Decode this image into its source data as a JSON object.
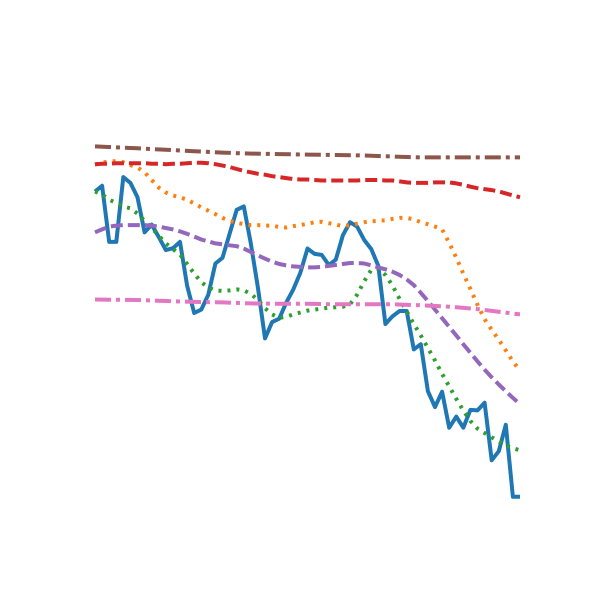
{
  "chart_data": {
    "type": "line",
    "title": "",
    "xlabel": "",
    "ylabel": "",
    "axes_visible": false,
    "grid": false,
    "legend": "none",
    "xlim": [
      0,
      60
    ],
    "ylim": [
      0,
      100
    ],
    "series": [
      {
        "color": "#1f77b4",
        "style": "solid",
        "x": [
          0,
          1,
          2,
          3,
          4,
          5,
          6,
          7,
          8,
          9,
          10,
          11,
          12,
          13,
          14,
          15,
          16,
          17,
          18,
          19,
          20,
          21,
          22,
          23,
          24,
          25,
          26,
          27,
          28,
          29,
          30,
          31,
          32,
          33,
          34,
          35,
          36,
          37,
          38,
          39,
          40,
          41,
          42,
          43,
          44,
          45,
          46,
          47,
          48,
          49,
          50,
          51,
          52,
          53,
          54,
          55,
          56,
          57,
          58,
          59,
          60
        ],
        "values": [
          72.6,
          73.8,
          62.1,
          62.1,
          75.6,
          74.4,
          71.4,
          64.1,
          65.7,
          63.1,
          60.4,
          60.8,
          62.1,
          53.0,
          47.3,
          48.0,
          51.1,
          57.6,
          58.8,
          63.8,
          68.8,
          69.5,
          61.8,
          52.6,
          42.0,
          45.4,
          46.1,
          49.5,
          52.2,
          55.7,
          60.7,
          59.6,
          59.4,
          57.3,
          58.4,
          63.5,
          66.2,
          65.3,
          62.5,
          60.6,
          57.1,
          45.0,
          46.6,
          47.7,
          47.7,
          39.7,
          40.8,
          31.0,
          27.7,
          30.9,
          23.4,
          25.7,
          23.4,
          27.1,
          27.0,
          28.6,
          16.6,
          18.5,
          24.0,
          9.0,
          9.0
        ]
      },
      {
        "color": "#ff7f0e",
        "style": "dotted",
        "x": [
          0,
          1,
          2,
          3,
          4,
          5,
          6,
          7,
          8,
          9,
          10,
          11,
          12,
          13,
          14,
          15,
          16,
          17,
          18,
          19,
          20,
          21,
          22,
          23,
          24,
          25,
          26,
          27,
          28,
          29,
          30,
          31,
          32,
          33,
          34,
          35,
          36,
          37,
          38,
          39,
          40,
          41,
          42,
          43,
          44,
          45,
          46,
          47,
          48,
          49,
          50,
          51,
          52,
          53,
          54,
          55,
          56,
          57,
          58,
          59,
          60
        ],
        "values": [
          78.2,
          78.6,
          78.9,
          78.9,
          78.7,
          78.1,
          77.6,
          76.6,
          75.0,
          73.4,
          72.4,
          71.8,
          71.4,
          70.9,
          70.1,
          69.3,
          68.6,
          67.9,
          67.1,
          66.5,
          66.1,
          65.8,
          65.6,
          65.6,
          65.5,
          65.5,
          65.2,
          65.1,
          65.4,
          65.6,
          65.9,
          66.2,
          66.3,
          66.0,
          65.7,
          65.4,
          65.6,
          65.9,
          66.2,
          66.4,
          66.5,
          66.6,
          66.9,
          67.1,
          67.1,
          66.8,
          66.2,
          65.8,
          65.3,
          64.7,
          61.9,
          58.8,
          55.5,
          52.3,
          49.0,
          46.0,
          43.8,
          41.7,
          39.5,
          37.2,
          35.3
        ]
      },
      {
        "color": "#2ca02c",
        "style": "dotted",
        "x": [
          0,
          1,
          2,
          3,
          4,
          5,
          6,
          7,
          8,
          9,
          10,
          11,
          12,
          13,
          14,
          15,
          16,
          17,
          18,
          19,
          20,
          21,
          22,
          23,
          24,
          25,
          26,
          27,
          28,
          29,
          30,
          31,
          32,
          33,
          34,
          35,
          36,
          37,
          38,
          39,
          40,
          41,
          42,
          43,
          44,
          45,
          46,
          47,
          48,
          49,
          50,
          51,
          52,
          53,
          54,
          55,
          56,
          57,
          58,
          59,
          60
        ],
        "values": [
          72.6,
          72.0,
          70.9,
          70.2,
          69.5,
          69.1,
          68.0,
          66.5,
          65.0,
          63.4,
          61.8,
          60.6,
          59.5,
          57.5,
          55.5,
          53.7,
          52.6,
          52.0,
          51.9,
          52.0,
          52.2,
          52.0,
          51.3,
          50.0,
          48.3,
          47.0,
          46.3,
          46.5,
          47.0,
          47.4,
          47.8,
          48.0,
          48.2,
          48.4,
          48.5,
          48.6,
          49.1,
          51.1,
          53.9,
          56.3,
          56.5,
          55.2,
          53.0,
          50.2,
          47.6,
          45.0,
          42.6,
          40.0,
          37.4,
          34.6,
          32.0,
          29.4,
          27.0,
          24.8,
          23.2,
          22.3,
          21.4,
          20.5,
          19.7,
          19.1,
          18.7
        ]
      },
      {
        "color": "#d62728",
        "style": "dashed",
        "x": [
          0,
          1,
          2,
          3,
          4,
          5,
          6,
          7,
          8,
          9,
          10,
          11,
          12,
          13,
          14,
          15,
          16,
          17,
          18,
          19,
          20,
          21,
          22,
          23,
          24,
          25,
          26,
          27,
          28,
          29,
          30,
          31,
          32,
          33,
          34,
          35,
          36,
          37,
          38,
          39,
          40,
          41,
          42,
          43,
          44,
          45,
          46,
          47,
          48,
          49,
          50,
          51,
          52,
          53,
          54,
          55,
          56,
          57,
          58,
          59,
          60
        ],
        "values": [
          78.3,
          78.4,
          78.4,
          78.5,
          78.5,
          78.5,
          78.5,
          78.5,
          78.4,
          78.4,
          78.3,
          78.4,
          78.4,
          78.5,
          78.6,
          78.6,
          78.5,
          78.3,
          78.0,
          77.7,
          77.3,
          76.9,
          76.6,
          76.3,
          76.1,
          75.8,
          75.6,
          75.4,
          75.2,
          75.1,
          75.1,
          75.0,
          74.9,
          74.9,
          74.9,
          74.9,
          74.9,
          74.9,
          75.0,
          75.0,
          75.0,
          74.9,
          74.9,
          74.7,
          74.5,
          74.4,
          74.4,
          74.4,
          74.5,
          74.5,
          74.5,
          74.3,
          74.0,
          73.6,
          73.3,
          73.1,
          72.9,
          72.6,
          72.2,
          71.8,
          71.4
        ]
      },
      {
        "color": "#9467bd",
        "style": "dashed",
        "x": [
          0,
          1,
          2,
          3,
          4,
          5,
          6,
          7,
          8,
          9,
          10,
          11,
          12,
          13,
          14,
          15,
          16,
          17,
          18,
          19,
          20,
          21,
          22,
          23,
          24,
          25,
          26,
          27,
          28,
          29,
          30,
          31,
          32,
          33,
          34,
          35,
          36,
          37,
          38,
          39,
          40,
          41,
          42,
          43,
          44,
          45,
          46,
          47,
          48,
          49,
          50,
          51,
          52,
          53,
          54,
          55,
          56,
          57,
          58,
          59,
          60
        ],
        "values": [
          64.1,
          64.7,
          65.3,
          65.5,
          65.6,
          65.6,
          65.6,
          65.6,
          65.5,
          65.3,
          65.0,
          64.7,
          64.3,
          63.8,
          63.2,
          62.6,
          62.2,
          61.8,
          61.6,
          61.4,
          61.2,
          60.7,
          60.0,
          59.3,
          58.6,
          58.0,
          57.5,
          57.2,
          57.0,
          56.9,
          56.8,
          56.8,
          56.9,
          57.1,
          57.3,
          57.5,
          57.7,
          57.7,
          57.6,
          57.2,
          56.8,
          56.4,
          55.9,
          55.2,
          54.3,
          53.1,
          51.5,
          49.8,
          48.0,
          46.2,
          44.4,
          42.6,
          40.8,
          39.0,
          37.2,
          35.5,
          33.9,
          32.4,
          31.0,
          29.6,
          28.3
        ]
      },
      {
        "color": "#8c564b",
        "style": "dashdot",
        "x": [
          0,
          6,
          10,
          14,
          18,
          22,
          26,
          30,
          34,
          38,
          42,
          46,
          50,
          54,
          60
        ],
        "values": [
          82.0,
          81.6,
          81.3,
          81.0,
          80.7,
          80.5,
          80.4,
          80.3,
          80.2,
          80.1,
          79.9,
          79.7,
          79.7,
          79.7,
          79.7
        ]
      },
      {
        "color": "#e377c2",
        "style": "dashdot",
        "x": [
          0,
          6,
          10,
          14,
          18,
          22,
          26,
          30,
          34,
          38,
          42,
          46,
          50,
          54,
          60
        ],
        "values": [
          50.1,
          50.0,
          49.8,
          49.6,
          49.5,
          49.3,
          49.2,
          49.2,
          49.1,
          49.1,
          49.1,
          48.9,
          48.6,
          48.1,
          47.0
        ]
      }
    ]
  }
}
